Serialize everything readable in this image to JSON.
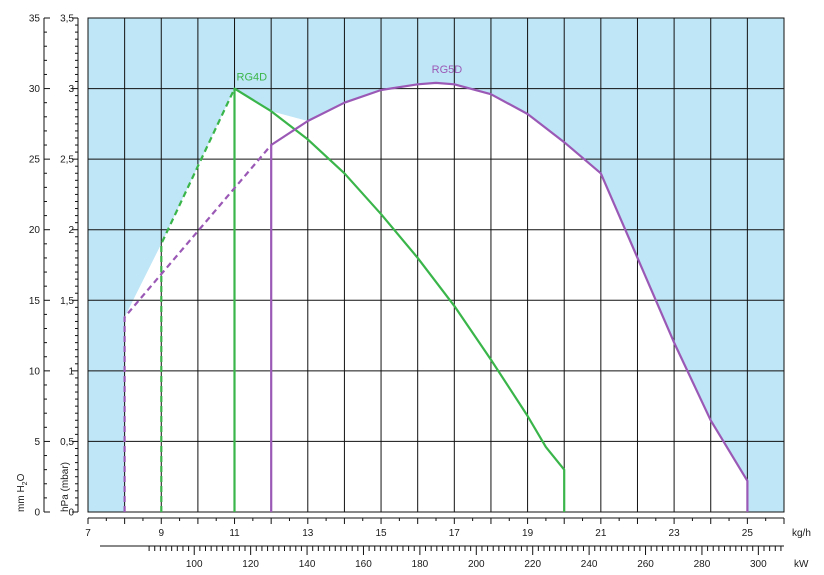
{
  "chart_data": {
    "type": "line",
    "colors": {
      "background_band": "#bfe6f6",
      "grid": "#111111",
      "RG4D": "#3ab54a",
      "RG5D": "#9b59b6"
    },
    "axes": {
      "x_kgh": {
        "unit": "kg/h",
        "range": [
          7,
          26
        ],
        "tick_labels": [
          "7",
          "9",
          "11",
          "13",
          "15",
          "17",
          "19",
          "21",
          "23",
          "25"
        ]
      },
      "x_kw": {
        "unit": "kW",
        "tick_labels": [
          "100",
          "120",
          "140",
          "160",
          "180",
          "200",
          "220",
          "240",
          "260",
          "280",
          "300"
        ]
      },
      "y_mmh2o": {
        "label_parts": [
          "mm H",
          "2",
          "O"
        ],
        "tick_labels": [
          "0",
          "5",
          "10",
          "15",
          "20",
          "25",
          "30",
          "35"
        ]
      },
      "y_hpa": {
        "label": "hPa (mbar)",
        "range": [
          0,
          3.5
        ],
        "tick_labels": [
          "0",
          "0,5",
          "1",
          "1,5",
          "2",
          "2,5",
          "3",
          "3,5"
        ]
      }
    },
    "grid": true,
    "series": [
      {
        "name": "RG4D",
        "dashed": {
          "x": [
            9,
            9,
            11
          ],
          "y": [
            0,
            1.9,
            3.0
          ]
        },
        "solid": {
          "x": [
            11,
            11,
            12,
            13,
            14,
            15,
            16,
            17,
            18,
            19,
            19.5,
            20,
            20,
            20
          ],
          "y": [
            0,
            3.0,
            2.84,
            2.64,
            2.4,
            2.11,
            1.8,
            1.46,
            1.08,
            0.68,
            0.46,
            0.3,
            0.25,
            0
          ]
        }
      },
      {
        "name": "RG5D",
        "dashed": {
          "x": [
            8,
            8,
            12
          ],
          "y": [
            0,
            1.38,
            2.6
          ]
        },
        "solid": {
          "x": [
            12,
            12,
            13,
            14,
            15,
            16,
            16.5,
            17,
            18,
            19,
            20,
            21,
            22,
            23,
            24,
            25,
            25
          ],
          "y": [
            0,
            2.6,
            2.77,
            2.9,
            2.99,
            3.03,
            3.04,
            3.03,
            2.96,
            2.82,
            2.62,
            2.4,
            1.8,
            1.2,
            0.65,
            0.22,
            0
          ]
        }
      }
    ]
  }
}
